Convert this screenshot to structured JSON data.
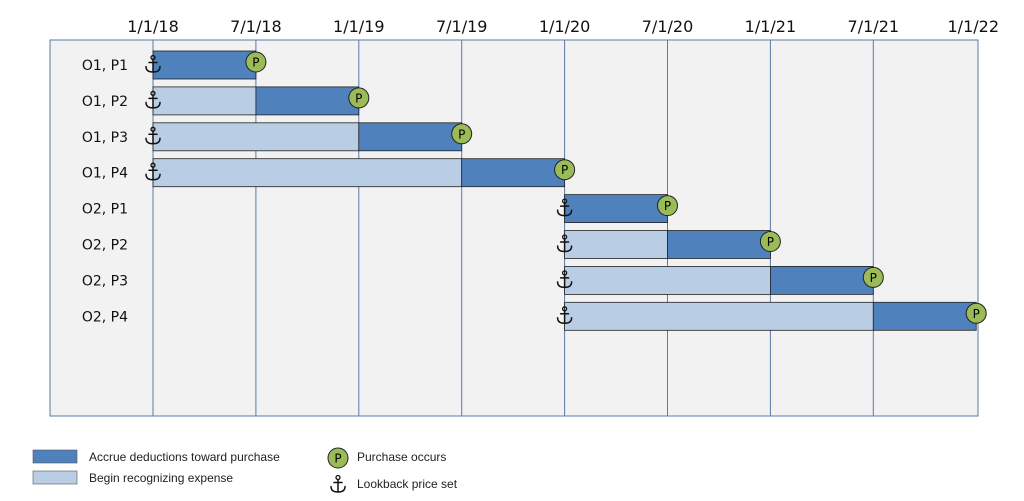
{
  "chart_data": {
    "type": "gantt",
    "x_ticks": [
      "1/1/18",
      "7/1/18",
      "1/1/19",
      "7/1/19",
      "1/1/20",
      "7/1/20",
      "1/1/21",
      "7/1/21",
      "1/1/22"
    ],
    "rows": [
      {
        "label": "O1, P1",
        "expense_start": 0,
        "accrue_start": 0,
        "end": 1
      },
      {
        "label": "O1, P2",
        "expense_start": 0,
        "accrue_start": 1,
        "end": 2
      },
      {
        "label": "O1, P3",
        "expense_start": 0,
        "accrue_start": 2,
        "end": 3
      },
      {
        "label": "O1, P4",
        "expense_start": 0,
        "accrue_start": 3,
        "end": 4
      },
      {
        "label": "O2, P1",
        "expense_start": 4,
        "accrue_start": 4,
        "end": 5
      },
      {
        "label": "O2, P2",
        "expense_start": 4,
        "accrue_start": 5,
        "end": 6
      },
      {
        "label": "O2, P3",
        "expense_start": 4,
        "accrue_start": 6,
        "end": 7
      },
      {
        "label": "O2, P4",
        "expense_start": 4,
        "accrue_start": 7,
        "end": 8
      }
    ],
    "legend": {
      "accrue": "Accrue deductions toward purchase",
      "expense": "Begin recognizing expense",
      "purchase": "Purchase occurs",
      "lookback": "Lookback price set"
    },
    "marker_letter": "P",
    "colors": {
      "accrue": "#4f81bd",
      "expense": "#b9cde5",
      "plot_background": "#f2f2f2",
      "grid": "#5a7aa8",
      "marker_fill": "#9bbb59"
    }
  }
}
